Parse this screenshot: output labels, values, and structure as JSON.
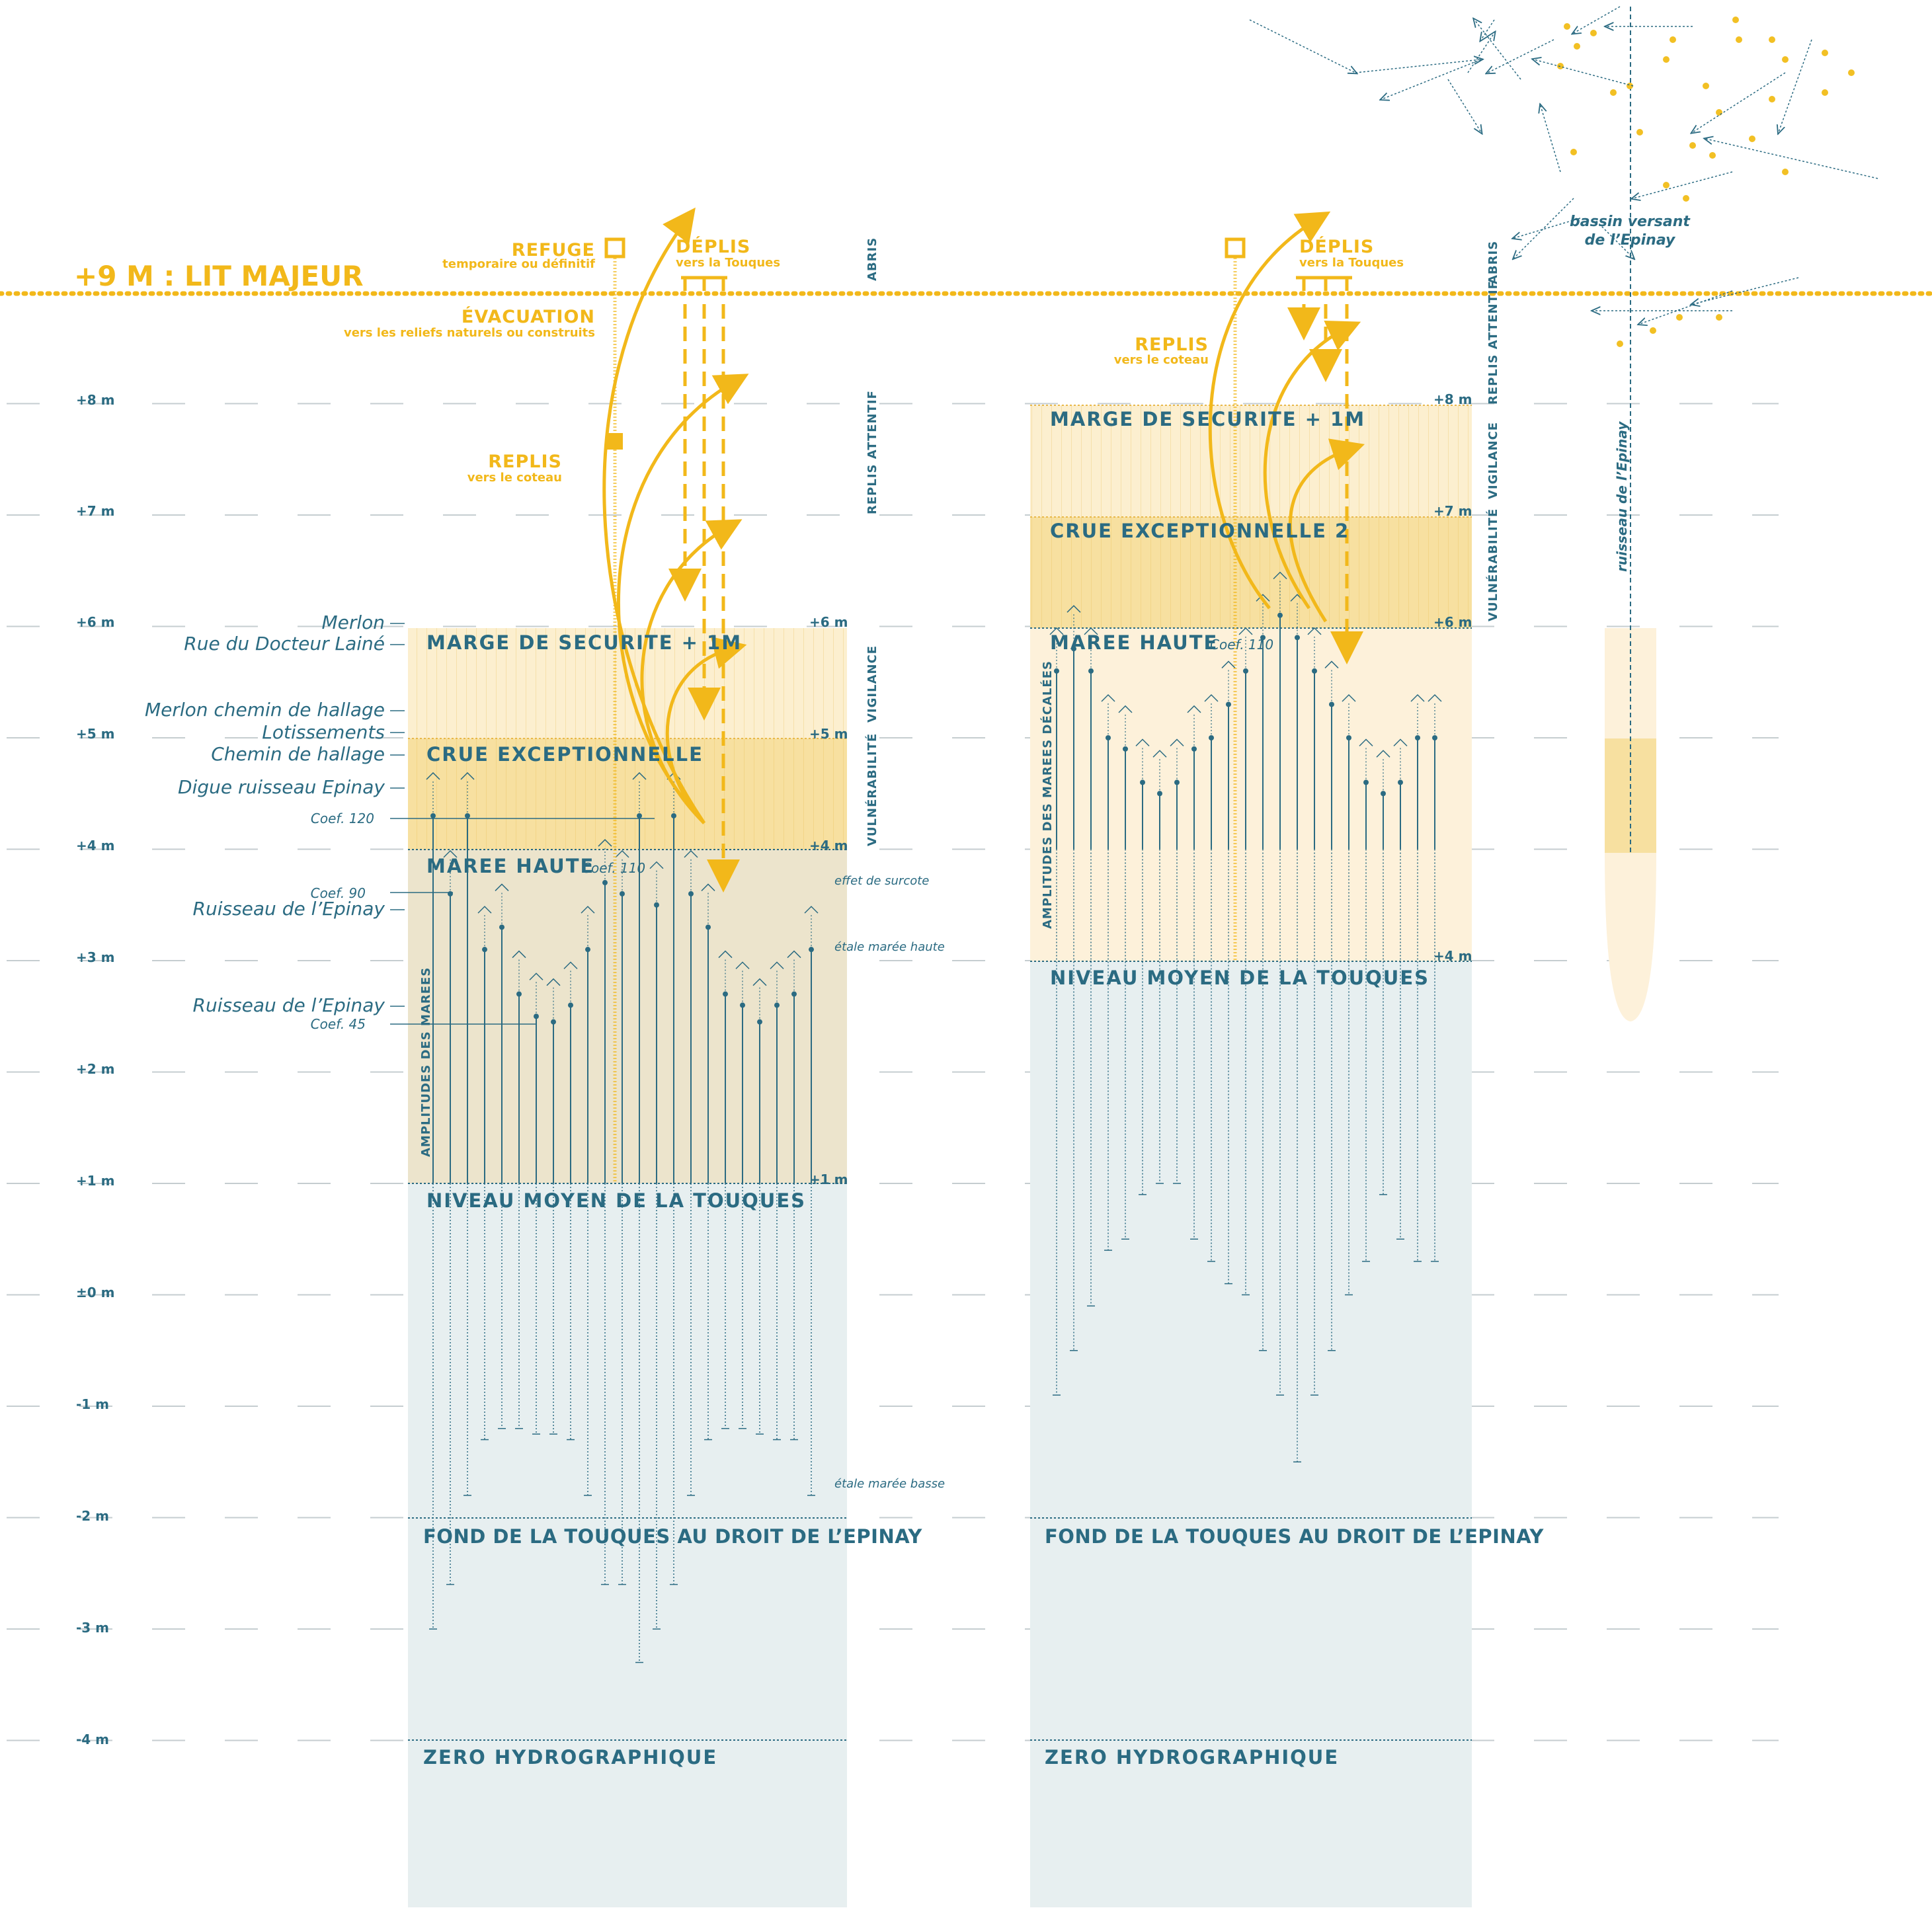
{
  "title": "+9 M : LIT MAJEUR",
  "axis_labels": [
    "+8 m",
    "+7 m",
    "+6 m",
    "+5 m",
    "+4 m",
    "+3 m",
    "+2 m",
    "+1 m",
    "±0 m",
    "-1 m",
    "-2 m",
    "-3 m",
    "-4 m"
  ],
  "left_column": {
    "objects": [
      {
        "label": "Merlon",
        "level": 6.0
      },
      {
        "label": "Rue du Docteur Lainé",
        "level": 5.85
      },
      {
        "label": "Merlon chemin de hallage",
        "level": 5.2
      },
      {
        "label": "Lotissements",
        "level": 5.05
      },
      {
        "label": "Chemin de hallage",
        "level": 4.85
      },
      {
        "label": "Digue ruisseau Epinay",
        "level": 4.55
      },
      {
        "label": "Ruisseau de l’Epinay",
        "level": 3.55
      },
      {
        "label": "Ruisseau de l’Epinay",
        "level": 2.7
      }
    ],
    "coefs": [
      {
        "label": "Coef. 120",
        "level": 4.3
      },
      {
        "label": "Coef. 90",
        "level": 3.65
      },
      {
        "label": "Coef. 45",
        "level": 2.45
      }
    ],
    "bands": {
      "safety": "MARGE DE SECURITE + 1M",
      "flood": "CRUE EXCEPTIONNELLE",
      "tide": "MAREE HAUTE",
      "tide_coef": "Coef. 110",
      "mean": "NIVEAU MOYEN DE LA TOUQUES",
      "bottom": "FOND DE LA TOUQUES AU DROIT DE L’EPINAY",
      "zero": "ZERO HYDROGRAPHIQUE"
    },
    "edge_labels": [
      "+6 m",
      "+5 m",
      "+4 m",
      "+1 m"
    ],
    "amplitude_label": "AMPLITUDES DES MAREES",
    "notes": {
      "surcote": "effet de surcote",
      "etale_haute": "étale marée haute",
      "etale_basse": "étale marée basse"
    },
    "side": {
      "vigilance": "VIGILANCE",
      "vulnerabilite": "VULNÉRABILITÉ",
      "replis": "REPLIS ATTENTIF",
      "abris": "ABRIS"
    }
  },
  "right_column": {
    "bands": {
      "safety": "MARGE DE SECURITE + 1M",
      "flood": "CRUE EXCEPTIONNELLE 2",
      "tide": "MAREE HAUTE",
      "tide_coef": "Coef. 110",
      "mean": "NIVEAU MOYEN DE LA TOUQUES",
      "bottom": "FOND DE LA TOUQUES AU DROIT DE L’EPINAY",
      "zero": "ZERO HYDROGRAPHIQUE"
    },
    "edge_labels": [
      "+8 m",
      "+7 m",
      "+6 m",
      "+4 m"
    ],
    "amplitude_label": "AMPLITUDES DES MAREES DÉCALÉES",
    "side": {
      "abris": "ABRIS",
      "replis": "REPLIS ATTENTIF",
      "vigilance": "VIGILANCE",
      "vulnerabilite": "VULNÉRABILITÉ"
    }
  },
  "strategies_left": {
    "refuge": "REFUGE",
    "refuge_sub": "temporaire ou définitif",
    "deplis": "DÉPLIS",
    "deplis_sub": "vers la Touques",
    "evacuation": "ÉVACUATION",
    "evacuation_sub": "vers les reliefs naturels ou construits",
    "replis": "REPLIS",
    "replis_sub": "vers le coteau"
  },
  "strategies_right": {
    "deplis": "DÉPLIS",
    "deplis_sub": "vers la Touques",
    "replis": "REPLIS",
    "replis_sub": "vers le coteau"
  },
  "watershed": {
    "label_line1": "bassin versant",
    "label_line2": "de l’Epinay",
    "stream": "ruisseau de l’Epinay"
  },
  "colors": {
    "yellow": "#f2b81a",
    "teal": "#2b6b82",
    "safety_fill": "#fcefcf",
    "flood_fill": "#f7e0a0",
    "tide_fill": "#ece4cc",
    "water_fill": "#e7eff0",
    "right_tide_fill": "#fdf1da"
  }
}
